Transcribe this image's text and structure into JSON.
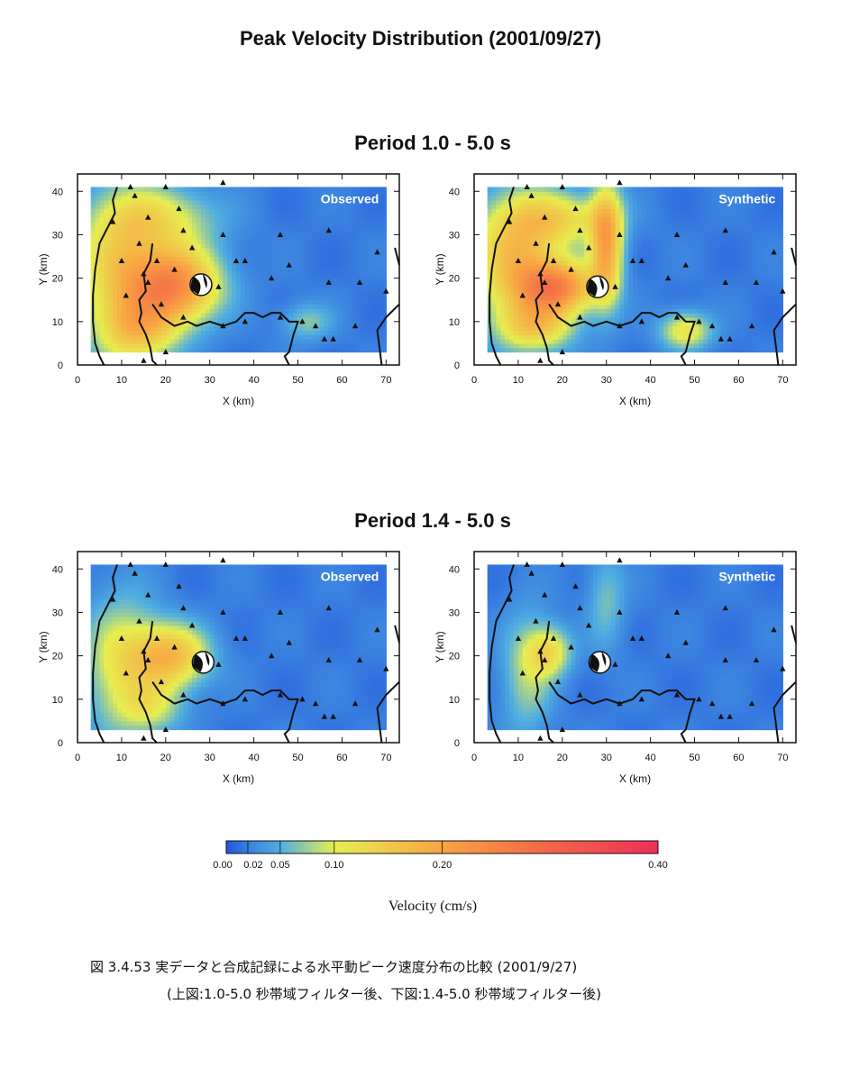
{
  "figure": {
    "title": "Peak Velocity Distribution (2001/09/27)",
    "caption_line1": "図 3.4.53 実データと合成記録による水平動ピーク速度分布の比較 (2001/9/27)",
    "caption_line2": "(上図:1.0-5.0 秒帯域フィルター後、下図:1.4-5.0 秒帯域フィルター後)"
  },
  "groups": [
    {
      "title": "Period 1.0 - 5.0 s"
    },
    {
      "title": "Period 1.4 - 5.0 s"
    }
  ],
  "chart_data": [
    {
      "type": "heatmap",
      "group": "Period 1.0 - 5.0 s",
      "label": "Observed",
      "xlabel": "X (km)",
      "ylabel": "Y (km)",
      "xlim": [
        0,
        73
      ],
      "ylim": [
        0,
        44
      ],
      "xticks": [
        0,
        10,
        20,
        30,
        40,
        50,
        60,
        70
      ],
      "yticks": [
        0,
        10,
        20,
        30,
        40
      ],
      "grid_extent": {
        "x": [
          3,
          70
        ],
        "y": [
          3,
          41
        ]
      },
      "epicenter": [
        28,
        18.5
      ],
      "hotspots": [
        {
          "x": 22,
          "y": 18.5,
          "sx": 7,
          "sy": 6,
          "v": 0.21
        },
        {
          "x": 10,
          "y": 22,
          "sx": 7,
          "sy": 12,
          "v": 0.12
        },
        {
          "x": 14,
          "y": 8,
          "sx": 6,
          "sy": 5,
          "v": 0.1
        },
        {
          "x": 19,
          "y": 34,
          "sx": 9,
          "sy": 5,
          "v": 0.08
        },
        {
          "x": 52,
          "y": 10,
          "sx": 4,
          "sy": 3,
          "v": 0.05
        }
      ]
    },
    {
      "type": "heatmap",
      "group": "Period 1.0 - 5.0 s",
      "label": "Synthetic",
      "xlabel": "X (km)",
      "ylabel": "Y (km)",
      "xlim": [
        0,
        73
      ],
      "ylim": [
        0,
        44
      ],
      "xticks": [
        0,
        10,
        20,
        30,
        40,
        50,
        60,
        70
      ],
      "yticks": [
        0,
        10,
        20,
        30,
        40
      ],
      "grid_extent": {
        "x": [
          3,
          70
        ],
        "y": [
          3,
          41
        ]
      },
      "epicenter": [
        28,
        18
      ],
      "hotspots": [
        {
          "x": 10,
          "y": 25,
          "sx": 7,
          "sy": 10,
          "v": 0.15
        },
        {
          "x": 19,
          "y": 18,
          "sx": 6,
          "sy": 4,
          "v": 0.2
        },
        {
          "x": 30,
          "y": 28,
          "sx": 2.5,
          "sy": 9,
          "v": 0.18
        },
        {
          "x": 14,
          "y": 9,
          "sx": 6,
          "sy": 4,
          "v": 0.11
        },
        {
          "x": 48,
          "y": 8,
          "sx": 4,
          "sy": 3,
          "v": 0.1
        },
        {
          "x": 20,
          "y": 34,
          "sx": 8,
          "sy": 4,
          "v": 0.09
        }
      ]
    },
    {
      "type": "heatmap",
      "group": "Period 1.4 - 5.0 s",
      "label": "Observed",
      "xlabel": "X (km)",
      "ylabel": "Y (km)",
      "xlim": [
        0,
        73
      ],
      "ylim": [
        0,
        44
      ],
      "xticks": [
        0,
        10,
        20,
        30,
        40,
        50,
        60,
        70
      ],
      "yticks": [
        0,
        10,
        20,
        30,
        40
      ],
      "grid_extent": {
        "x": [
          3,
          70
        ],
        "y": [
          3,
          41
        ]
      },
      "epicenter": [
        28.5,
        18.5
      ],
      "hotspots": [
        {
          "x": 21,
          "y": 20,
          "sx": 6,
          "sy": 5,
          "v": 0.15
        },
        {
          "x": 10,
          "y": 18,
          "sx": 6,
          "sy": 11,
          "v": 0.09
        },
        {
          "x": 17,
          "y": 8,
          "sx": 5,
          "sy": 4,
          "v": 0.06
        }
      ]
    },
    {
      "type": "heatmap",
      "group": "Period 1.4 - 5.0 s",
      "label": "Synthetic",
      "xlabel": "X (km)",
      "ylabel": "Y (km)",
      "xlim": [
        0,
        73
      ],
      "ylim": [
        0,
        44
      ],
      "xticks": [
        0,
        10,
        20,
        30,
        40,
        50,
        60,
        70
      ],
      "yticks": [
        0,
        10,
        20,
        30,
        40
      ],
      "grid_extent": {
        "x": [
          3,
          70
        ],
        "y": [
          3,
          41
        ]
      },
      "epicenter": [
        28.5,
        18.5
      ],
      "hotspots": [
        {
          "x": 17,
          "y": 21,
          "sx": 3.5,
          "sy": 4,
          "v": 0.1
        },
        {
          "x": 12,
          "y": 16,
          "sx": 4,
          "sy": 10,
          "v": 0.06
        },
        {
          "x": 30,
          "y": 33,
          "sx": 3,
          "sy": 8,
          "v": 0.045
        }
      ]
    }
  ],
  "stations": [
    [
      12,
      41
    ],
    [
      20,
      41
    ],
    [
      33,
      42
    ],
    [
      13,
      39
    ],
    [
      23,
      36
    ],
    [
      8,
      33
    ],
    [
      16,
      34
    ],
    [
      24,
      31
    ],
    [
      33,
      30
    ],
    [
      46,
      30
    ],
    [
      57,
      31
    ],
    [
      68,
      26
    ],
    [
      14,
      28
    ],
    [
      26,
      27
    ],
    [
      36,
      24
    ],
    [
      38,
      24
    ],
    [
      48,
      23
    ],
    [
      10,
      24
    ],
    [
      18,
      24
    ],
    [
      15,
      21
    ],
    [
      16,
      19
    ],
    [
      22,
      22
    ],
    [
      32,
      18
    ],
    [
      44,
      20
    ],
    [
      57,
      19
    ],
    [
      64,
      19
    ],
    [
      11,
      16
    ],
    [
      19,
      14
    ],
    [
      24,
      11
    ],
    [
      33,
      9
    ],
    [
      38,
      10
    ],
    [
      46,
      11
    ],
    [
      51,
      10
    ],
    [
      54,
      9
    ],
    [
      56,
      6
    ],
    [
      58,
      6
    ],
    [
      63,
      9
    ],
    [
      70,
      17
    ],
    [
      15,
      1
    ],
    [
      20,
      3
    ]
  ],
  "colorbar": {
    "label": "Velocity (cm/s)",
    "ticks": [
      "0.00",
      "0.02",
      "0.05",
      "0.10",
      "0.20",
      "0.40"
    ],
    "tick_values": [
      0,
      0.02,
      0.05,
      0.1,
      0.2,
      0.4
    ],
    "colors": [
      "#2255dd",
      "#3a80e0",
      "#50aee0",
      "#e6ee50",
      "#f9a443",
      "#f26548",
      "#ee3058"
    ]
  }
}
